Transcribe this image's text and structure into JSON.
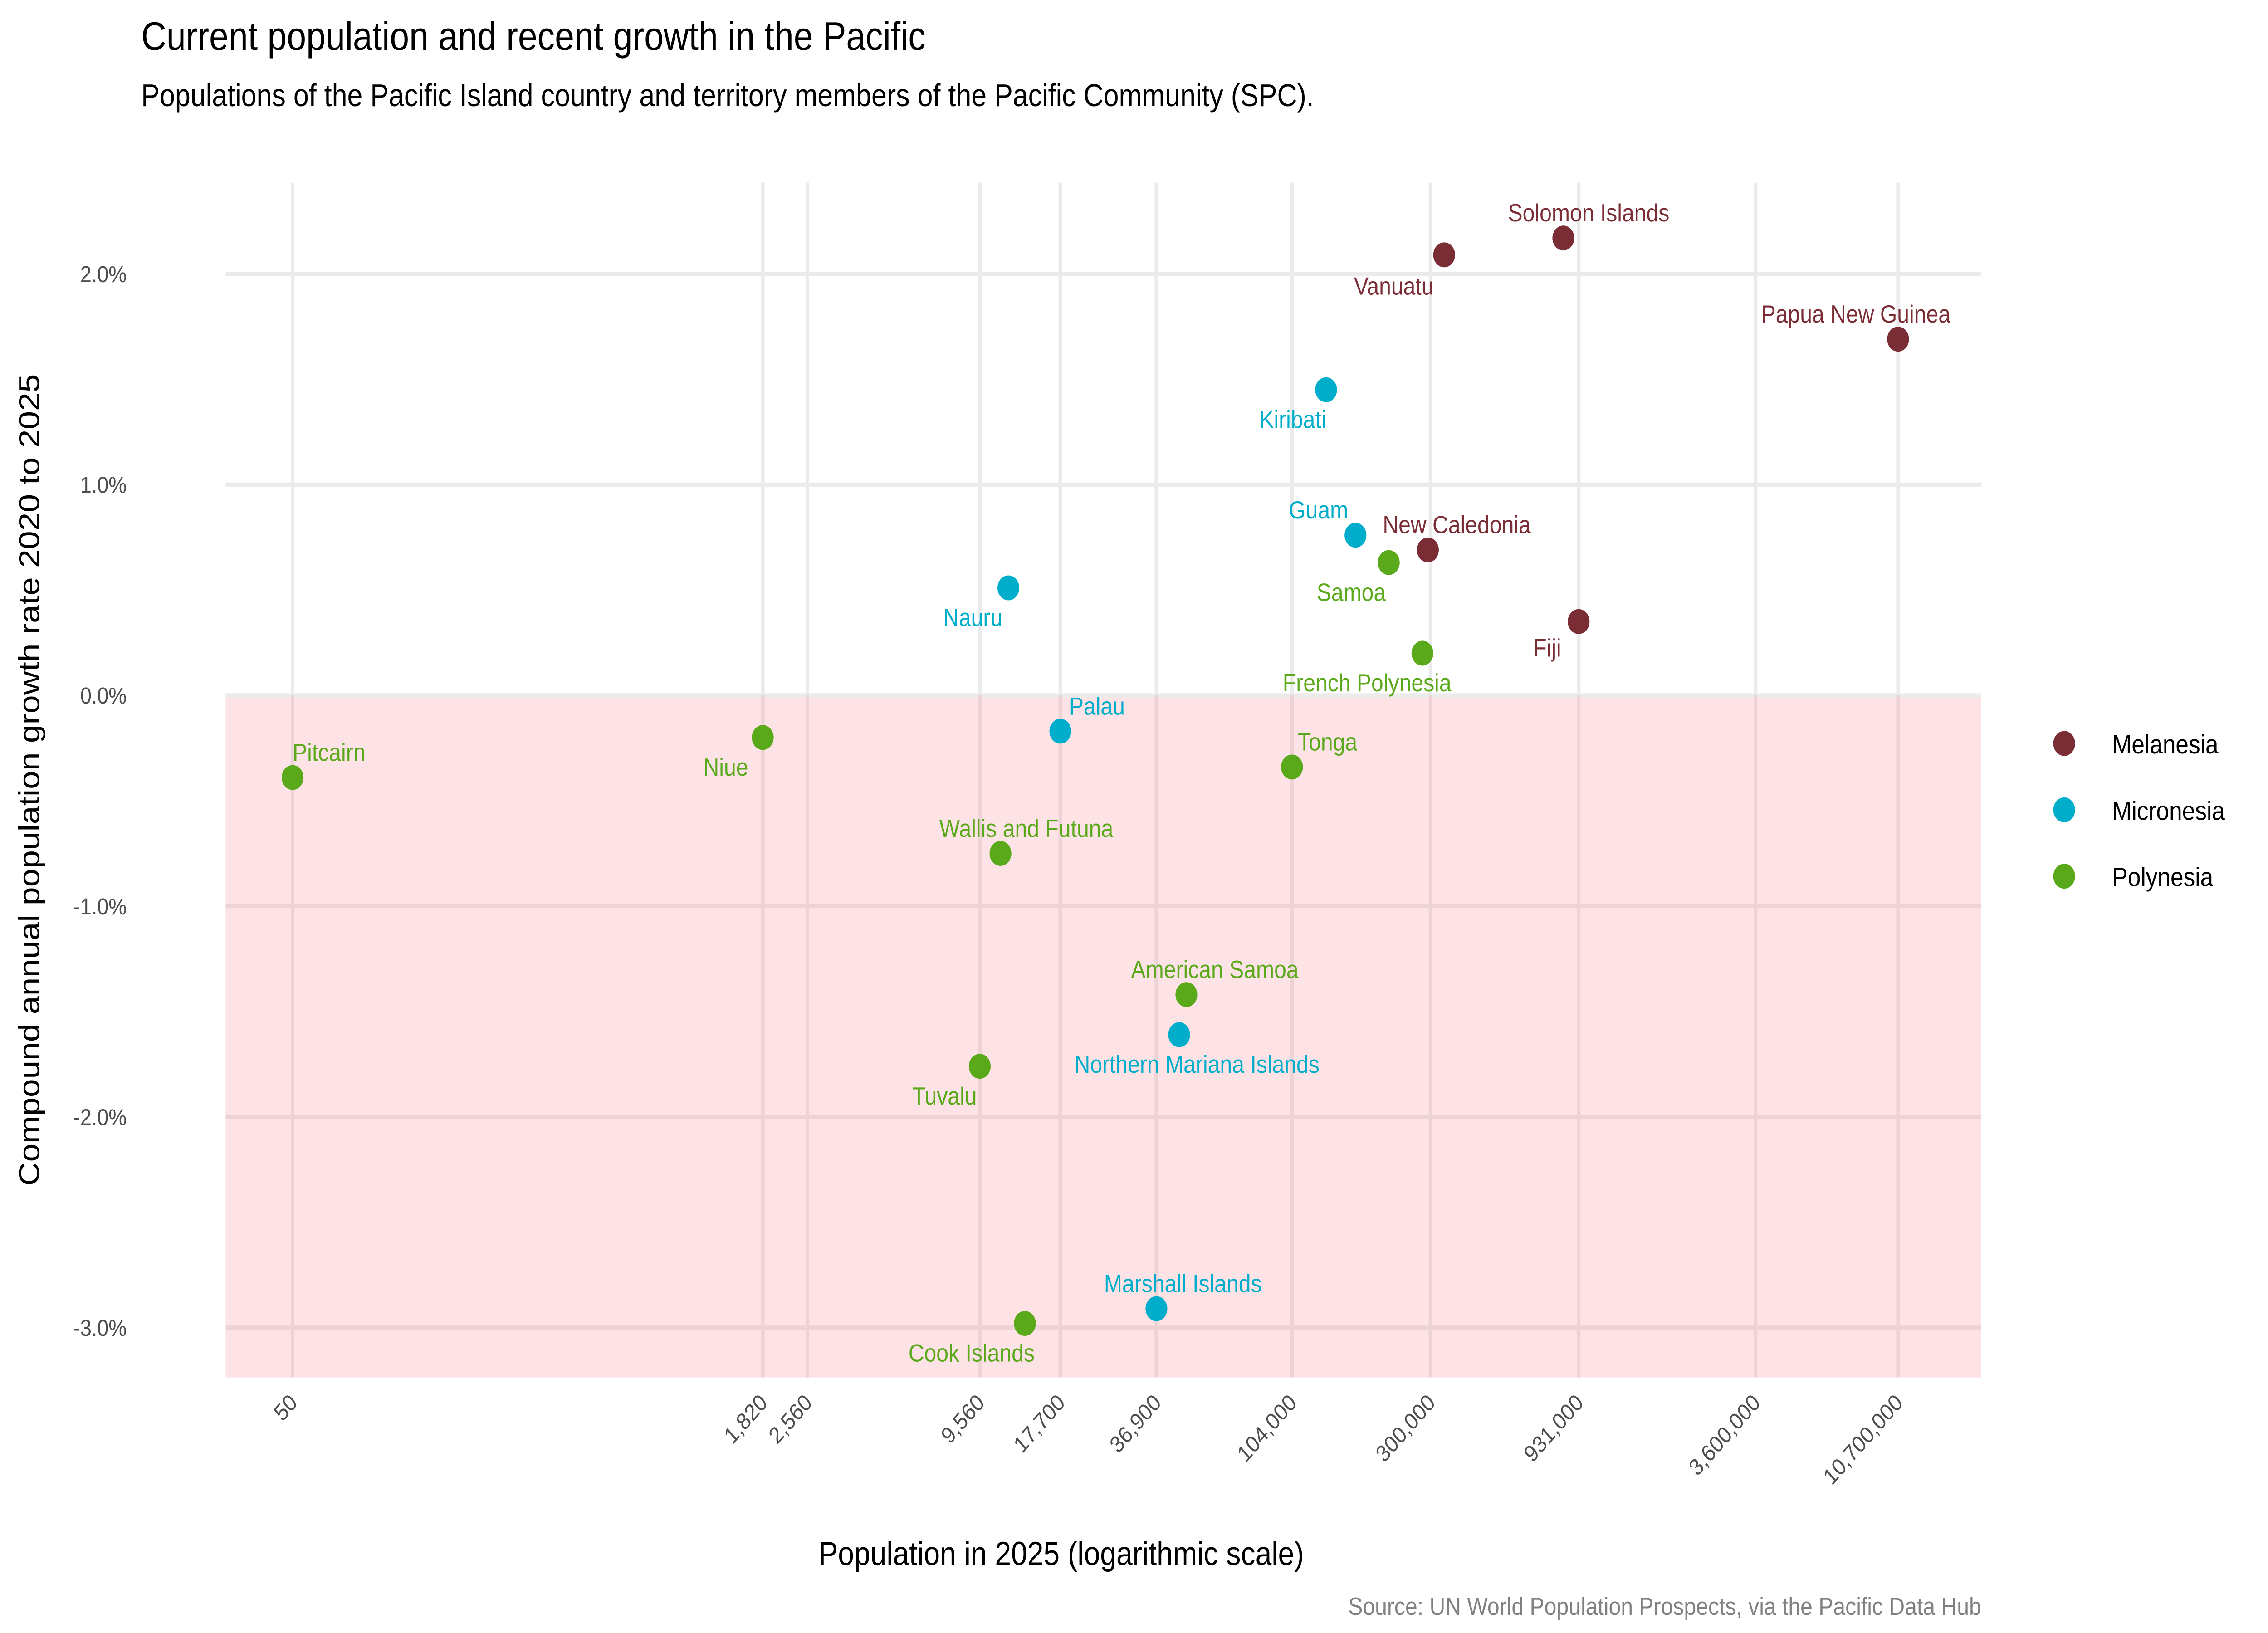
{
  "chart_data": {
    "type": "scatter",
    "title": "Current population and recent growth in the Pacific",
    "subtitle": "Populations of the Pacific Island country and territory members of the Pacific Community (SPC).",
    "xlabel": "Population in 2025 (logarithmic scale)",
    "ylabel": "Compound annual population growth rate 2020 to 2025",
    "caption": "Source: UN World Population Prospects, via the Pacific Data Hub",
    "x_scale": "log",
    "xlim": [
      30,
      20000000
    ],
    "ylim": [
      -3.25,
      2.4
    ],
    "x_ticks": [
      50,
      1820,
      2560,
      9560,
      17700,
      36900,
      104000,
      300000,
      931000,
      3600000,
      10700000
    ],
    "x_tick_labels": [
      "50",
      "1,820",
      "2,560",
      "9,560",
      "17,700",
      "36,900",
      "104,000",
      "300,000",
      "931,000",
      "3,600,000",
      "10,700,000"
    ],
    "y_ticks": [
      -3,
      -2,
      -1,
      0,
      1,
      2
    ],
    "y_tick_labels": [
      "-3.0%",
      "-2.0%",
      "-1.0%",
      "0.0%",
      "1.0%",
      "2.0%"
    ],
    "grid": true,
    "negative_region_shaded": true,
    "shade_color": "#FDE3E5",
    "legend_position": "right",
    "legend": [
      {
        "name": "Melanesia",
        "color": "#7B2D35"
      },
      {
        "name": "Micronesia",
        "color": "#00AECB"
      },
      {
        "name": "Polynesia",
        "color": "#5AA91A"
      }
    ],
    "points": [
      {
        "label": "Pitcairn",
        "region": "Polynesia",
        "x": 50,
        "y": -0.39
      },
      {
        "label": "Niue",
        "region": "Polynesia",
        "x": 1820,
        "y": -0.2
      },
      {
        "label": "Nauru",
        "region": "Micronesia",
        "x": 11900,
        "y": 0.51
      },
      {
        "label": "Palau",
        "region": "Micronesia",
        "x": 17700,
        "y": -0.17
      },
      {
        "label": "Wallis and Futuna",
        "region": "Polynesia",
        "x": 11200,
        "y": -0.75
      },
      {
        "label": "Tuvalu",
        "region": "Polynesia",
        "x": 9560,
        "y": -1.76
      },
      {
        "label": "Cook Islands",
        "region": "Polynesia",
        "x": 13500,
        "y": -2.98
      },
      {
        "label": "Marshall Islands",
        "region": "Micronesia",
        "x": 36900,
        "y": -2.91
      },
      {
        "label": "Northern Mariana Islands",
        "region": "Micronesia",
        "x": 43900,
        "y": -1.61
      },
      {
        "label": "American Samoa",
        "region": "Polynesia",
        "x": 46400,
        "y": -1.42
      },
      {
        "label": "Tonga",
        "region": "Polynesia",
        "x": 104000,
        "y": -0.34
      },
      {
        "label": "Kiribati",
        "region": "Micronesia",
        "x": 135000,
        "y": 1.45
      },
      {
        "label": "Guam",
        "region": "Micronesia",
        "x": 169000,
        "y": 0.76
      },
      {
        "label": "Samoa",
        "region": "Polynesia",
        "x": 218000,
        "y": 0.63
      },
      {
        "label": "New Caledonia",
        "region": "Melanesia",
        "x": 294000,
        "y": 0.69
      },
      {
        "label": "French Polynesia",
        "region": "Polynesia",
        "x": 282000,
        "y": 0.2
      },
      {
        "label": "Vanuatu",
        "region": "Melanesia",
        "x": 333000,
        "y": 2.09
      },
      {
        "label": "Fiji",
        "region": "Melanesia",
        "x": 931000,
        "y": 0.35
      },
      {
        "label": "Solomon Islands",
        "region": "Melanesia",
        "x": 828000,
        "y": 2.17
      },
      {
        "label": "Papua New Guinea",
        "region": "Melanesia",
        "x": 10700000,
        "y": 1.69
      }
    ]
  }
}
